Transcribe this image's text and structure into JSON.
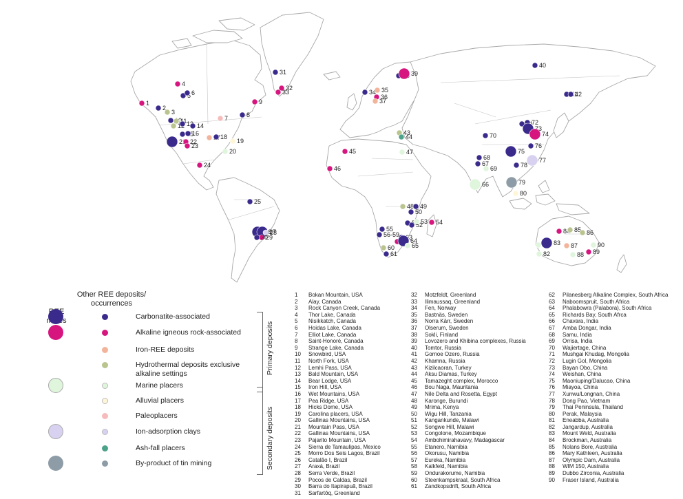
{
  "legend": {
    "mines_header": "REE\nmines",
    "other_header": "Other REE deposits/\noccurrences",
    "primary_label": "Primary deposits",
    "secondary_label": "Secondary deposits",
    "categories": [
      {
        "key": "carb",
        "label": "Carbonatite-associated",
        "color": "#3a2a8c",
        "mine": true,
        "other": true
      },
      {
        "key": "alk",
        "label": "Alkaline igneous rock-associated",
        "color": "#d6157f",
        "mine": true,
        "other": true
      },
      {
        "key": "iron",
        "label": "Iron-REE deposits",
        "color": "#f2b49a",
        "mine": false,
        "other": true
      },
      {
        "key": "hydro",
        "label": "Hydrothermal deposits exclusive alkaline settings",
        "color": "#b9c48f",
        "mine": false,
        "other": true
      },
      {
        "key": "marine",
        "label": "Marine placers",
        "color": "#dff5dc",
        "mine": true,
        "other": true
      },
      {
        "key": "alluvial",
        "label": "Alluvial placers",
        "color": "#fff6d8",
        "mine": false,
        "other": true
      },
      {
        "key": "paleo",
        "label": "Paleoplacers",
        "color": "#f6bcbc",
        "mine": false,
        "other": true
      },
      {
        "key": "ion",
        "label": "Ion-adsorption clays",
        "color": "#d8d2f0",
        "mine": true,
        "other": true
      },
      {
        "key": "ash",
        "label": "Ash-fall placers",
        "color": "#4da28a",
        "mine": false,
        "other": true
      },
      {
        "key": "tin",
        "label": "By-product of tin mining",
        "color": "#8d9ca6",
        "mine": true,
        "other": true
      }
    ]
  },
  "deposits": [
    "Bokan Mountain, USA",
    "Alay, Canada",
    "Rock Canyon Creek, Canada",
    "Thor Lake, Canada",
    "Nisikkatch, Canada",
    "Hoidas Lake, Canada",
    "Elliot Lake, Canada",
    "Saint-Honoré, Canada",
    "Strange Lake, Canada",
    "Snowbird, USA",
    "North Fork, USA",
    "Lemhi Pass, USA",
    "Bald Mountain, USA",
    "Bear Lodge, USA",
    "Iron Hill, USA",
    "Wet Mountains, USA",
    "Pea Ridge, USA",
    "Hicks Dome, USA",
    "Carolina placers, USA",
    "Gallinas Mountains, USA",
    "Mountain Pass, USA",
    "Gallinas Mountains, USA",
    "Pajarito Mountain, USA",
    "Sierra de Tamaulipas, Mexico",
    "Morro Dos Seis Lagos, Brazil",
    "Catalão I, Brazil",
    "Araxá, Brazil",
    "Serra Verde, Brazil",
    "Pocos de Caldas, Brazil",
    "Barra do Itapirapuã, Brazil",
    "Sarfartôq, Greenland",
    "Motzfeldt, Greenland",
    "Ilimaussaq, Greenland",
    "Fen, Norway",
    "Bastnäs, Sweden",
    "Norra Kärr, Sweden",
    "Olserum, Sweden",
    "Sokli, Finland",
    "Lovozero and Khibina complexes, Russia",
    "Tomtor, Russia",
    "Gornoe Ozero, Russia",
    "Khamna, Russia",
    "Kizilcaoran, Turkey",
    "Aksu Diamas, Turkey",
    "Tamazeght complex, Morocco",
    "Bou Naga, Mauritania",
    "Nile Delta and Rosetta, Egypt",
    "Karonge, Burundi",
    "Mrima, Kenya",
    "Wigu Hill, Tanzania",
    "Kangankunde, Malawi",
    "Songwe Hill, Malawi",
    "Congolone, Mozambique",
    "Ambohimirahavavy, Madagascar",
    "Etanero, Namibia",
    "Okorusu, Namibia",
    "Eureka, Namibia",
    "Kalkfeld, Namibia",
    "Ondurakorume, Namibia",
    "Steenkampskraal, South Africa",
    "Zandkopsdrift, South Africa",
    "Pilanesberg Alkaline Complex, South Africa",
    "Naboomspruit, South Africa",
    "Phalabowra (Palabora), South Africa",
    "Richards Bay, South Afrca",
    "Chavara, India",
    "Amba Dongar, India",
    "Samu, India",
    "Orrisa, India",
    "Wajiertage, China",
    "Mushgai Khudag, Mongolia",
    "Lugin Gol, Mongolia",
    "Bayan Obo, China",
    "Weishan, China",
    "Maoniuping/Dalucao, China",
    "Miayoa, China",
    "Xunwu/Longnan, China",
    "Dong Pao, Vietnam",
    "Thai Peninsula, Thailand",
    "Perak, Malaysia",
    "Eneabba, Australia",
    "Jangardup, Australia",
    "Mount Weld, Australia",
    "Brockman, Australia",
    "Nolans Bore, Australia",
    "Mary Kathleen, Australia",
    "Olympic Dam, Australia",
    "WIM 150, Australia",
    "Dubbo Zirconia, Australia",
    "Fraser Island, Australia"
  ],
  "markers": [
    {
      "n": "1",
      "label": "1",
      "cat": "alk",
      "mine": false,
      "lx": 206,
      "ly": 150
    },
    {
      "n": "2",
      "label": "2",
      "cat": "carb",
      "mine": false,
      "lx": 230,
      "ly": 157
    },
    {
      "n": "3",
      "label": "3",
      "cat": "hydro",
      "mine": false,
      "lx": 243,
      "ly": 163
    },
    {
      "n": "4",
      "label": "4",
      "cat": "alk",
      "mine": false,
      "lx": 258,
      "ly": 122
    },
    {
      "n": "5",
      "label": "5",
      "cat": "carb",
      "mine": false,
      "lx": 266,
      "ly": 139
    },
    {
      "n": "6",
      "label": "6",
      "cat": "carb",
      "mine": false,
      "lx": 272,
      "ly": 135
    },
    {
      "n": "7",
      "label": "7",
      "cat": "paleo",
      "mine": false,
      "lx": 320,
      "ly": 172
    },
    {
      "n": "8",
      "label": "8",
      "cat": "carb",
      "mine": false,
      "lx": 352,
      "ly": 167
    },
    {
      "n": "9",
      "label": "9",
      "cat": "alk",
      "mine": false,
      "lx": 370,
      "ly": 148
    },
    {
      "n": "10",
      "label": "10",
      "cat": "carb",
      "mine": false,
      "lx": 248,
      "ly": 175
    },
    {
      "n": "11",
      "label": "11",
      "cat": "hydro",
      "mine": false,
      "lx": 256,
      "ly": 176
    },
    {
      "n": "12",
      "label": "12",
      "cat": "hydro",
      "mine": false,
      "lx": 252,
      "ly": 183
    },
    {
      "n": "13",
      "label": "13",
      "cat": "carb",
      "mine": false,
      "lx": 265,
      "ly": 180
    },
    {
      "n": "14",
      "label": "14",
      "cat": "carb",
      "mine": false,
      "lx": 280,
      "ly": 183
    },
    {
      "n": "15",
      "label": "15",
      "cat": "carb",
      "mine": false,
      "lx": 265,
      "ly": 195
    },
    {
      "n": "16",
      "label": "16",
      "cat": "carb",
      "mine": false,
      "lx": 273,
      "ly": 194
    },
    {
      "n": "17",
      "label": "17",
      "cat": "iron",
      "mine": false,
      "lx": 304,
      "ly": 200
    },
    {
      "n": "18",
      "label": "18",
      "cat": "carb",
      "mine": false,
      "lx": 314,
      "ly": 199
    },
    {
      "n": "19",
      "label": "19",
      "cat": "alluvial",
      "mine": false,
      "lx": 338,
      "ly": 205
    },
    {
      "n": "20",
      "label": "20",
      "cat": "marine",
      "mine": false,
      "lx": 327,
      "ly": 220
    },
    {
      "n": "21",
      "label": "21",
      "cat": "carb",
      "mine": true,
      "lx": 250,
      "ly": 206
    },
    {
      "n": "22",
      "label": "22",
      "cat": "alk",
      "mine": false,
      "lx": 270,
      "ly": 206
    },
    {
      "n": "23",
      "label": "23",
      "cat": "alk",
      "mine": false,
      "lx": 272,
      "ly": 212
    },
    {
      "n": "24",
      "label": "24",
      "cat": "alk",
      "mine": false,
      "lx": 290,
      "ly": 240
    },
    {
      "n": "25",
      "label": "25",
      "cat": "carb",
      "mine": false,
      "lx": 363,
      "ly": 293
    },
    {
      "n": "26",
      "label": "26",
      "cat": "carb",
      "mine": true,
      "lx": 374,
      "ly": 337
    },
    {
      "n": "27",
      "label": "27",
      "cat": "carb",
      "mine": true,
      "lx": 381,
      "ly": 337
    },
    {
      "n": "28",
      "label": "28",
      "cat": "ion",
      "mine": false,
      "lx": 386,
      "ly": 338
    },
    {
      "n": "29",
      "label": "29",
      "cat": "alk",
      "mine": false,
      "lx": 380,
      "ly": 345
    },
    {
      "n": "30",
      "label": "30",
      "cat": "carb",
      "mine": false,
      "lx": 373,
      "ly": 345
    },
    {
      "n": "31",
      "label": "31",
      "cat": "carb",
      "mine": false,
      "lx": 400,
      "ly": 105
    },
    {
      "n": "32",
      "label": "32",
      "cat": "alk",
      "mine": false,
      "lx": 409,
      "ly": 128
    },
    {
      "n": "33",
      "label": "33",
      "cat": "alk",
      "mine": false,
      "lx": 404,
      "ly": 134
    },
    {
      "n": "34",
      "label": "34",
      "cat": "carb",
      "mine": false,
      "lx": 530,
      "ly": 134
    },
    {
      "n": "35",
      "label": "35",
      "cat": "iron",
      "mine": false,
      "lx": 548,
      "ly": 131
    },
    {
      "n": "36",
      "label": "36",
      "cat": "alk",
      "mine": false,
      "lx": 547,
      "ly": 141
    },
    {
      "n": "37",
      "label": "37",
      "cat": "iron",
      "mine": false,
      "lx": 545,
      "ly": 147
    },
    {
      "n": "38",
      "label": "38",
      "cat": "carb",
      "mine": false,
      "lx": 579,
      "ly": 110
    },
    {
      "n": "39",
      "label": "39",
      "cat": "alk",
      "mine": true,
      "lx": 587,
      "ly": 107
    },
    {
      "n": "40",
      "label": "40",
      "cat": "carb",
      "mine": false,
      "lx": 777,
      "ly": 95
    },
    {
      "n": "41",
      "label": "41",
      "cat": "carb",
      "mine": false,
      "lx": 823,
      "ly": 137
    },
    {
      "n": "42",
      "label": "42",
      "cat": "carb",
      "mine": false,
      "lx": 829,
      "ly": 137
    },
    {
      "n": "43",
      "label": "43",
      "cat": "hydro",
      "mine": false,
      "lx": 580,
      "ly": 193
    },
    {
      "n": "44",
      "label": "44",
      "cat": "ash",
      "mine": false,
      "lx": 583,
      "ly": 199
    },
    {
      "n": "45",
      "label": "45",
      "cat": "alk",
      "mine": false,
      "lx": 501,
      "ly": 220
    },
    {
      "n": "46",
      "label": "46",
      "cat": "alk",
      "mine": false,
      "lx": 479,
      "ly": 245
    },
    {
      "n": "47",
      "label": "47",
      "cat": "marine",
      "mine": false,
      "lx": 584,
      "ly": 221
    },
    {
      "n": "48",
      "label": "48",
      "cat": "hydro",
      "mine": false,
      "lx": 585,
      "ly": 300
    },
    {
      "n": "49",
      "label": "49",
      "cat": "carb",
      "mine": false,
      "lx": 604,
      "ly": 300
    },
    {
      "n": "50",
      "label": "50",
      "cat": "carb",
      "mine": false,
      "lx": 597,
      "ly": 308
    },
    {
      "n": "51",
      "label": "51",
      "cat": "carb",
      "mine": false,
      "lx": 592,
      "ly": 324
    },
    {
      "n": "52",
      "label": "52",
      "cat": "carb",
      "mine": false,
      "lx": 598,
      "ly": 327
    },
    {
      "n": "53",
      "label": "53",
      "cat": "marine",
      "mine": false,
      "lx": 605,
      "ly": 322
    },
    {
      "n": "54",
      "label": "54",
      "cat": "alk",
      "mine": false,
      "lx": 627,
      "ly": 323
    },
    {
      "n": "55",
      "label": "55",
      "cat": "carb",
      "mine": false,
      "lx": 555,
      "ly": 333
    },
    {
      "n": "56",
      "label": "56-59",
      "cat": "carb",
      "mine": false,
      "lx": 551,
      "ly": 341
    },
    {
      "n": "60",
      "label": "60",
      "cat": "hydro",
      "mine": false,
      "lx": 557,
      "ly": 360
    },
    {
      "n": "61",
      "label": "61",
      "cat": "carb",
      "mine": false,
      "lx": 561,
      "ly": 369
    },
    {
      "n": "62",
      "label": "62",
      "cat": "alk",
      "mine": false,
      "lx": 577,
      "ly": 351
    },
    {
      "n": "63",
      "label": "63",
      "cat": "carb",
      "mine": false,
      "lx": 583,
      "ly": 345
    },
    {
      "n": "64",
      "label": "64",
      "cat": "carb",
      "mine": true,
      "lx": 586,
      "ly": 350
    },
    {
      "n": "65",
      "label": "65",
      "cat": "marine",
      "mine": false,
      "lx": 592,
      "ly": 357
    },
    {
      "n": "66",
      "label": "66",
      "cat": "marine",
      "mine": true,
      "lx": 690,
      "ly": 268
    },
    {
      "n": "67",
      "label": "67",
      "cat": "carb",
      "mine": false,
      "lx": 694,
      "ly": 238
    },
    {
      "n": "68",
      "label": "68",
      "cat": "carb",
      "mine": false,
      "lx": 696,
      "ly": 229
    },
    {
      "n": "69",
      "label": "69",
      "cat": "marine",
      "mine": false,
      "lx": 706,
      "ly": 245
    },
    {
      "n": "70",
      "label": "70",
      "cat": "carb",
      "mine": false,
      "lx": 705,
      "ly": 197
    },
    {
      "n": "71",
      "label": "71",
      "cat": "carb",
      "mine": false,
      "lx": 758,
      "ly": 180
    },
    {
      "n": "72",
      "label": "72",
      "cat": "carb",
      "mine": false,
      "lx": 766,
      "ly": 178
    },
    {
      "n": "73",
      "label": "73",
      "cat": "carb",
      "mine": true,
      "lx": 767,
      "ly": 187
    },
    {
      "n": "74",
      "label": "74",
      "cat": "alk",
      "mine": true,
      "lx": 777,
      "ly": 195
    },
    {
      "n": "75",
      "label": "75",
      "cat": "carb",
      "mine": true,
      "lx": 742,
      "ly": 220
    },
    {
      "n": "76",
      "label": "76",
      "cat": "carb",
      "mine": false,
      "lx": 771,
      "ly": 212
    },
    {
      "n": "77",
      "label": "77",
      "cat": "ion",
      "mine": true,
      "lx": 773,
      "ly": 233
    },
    {
      "n": "78",
      "label": "78",
      "cat": "carb",
      "mine": false,
      "lx": 750,
      "ly": 240
    },
    {
      "n": "79",
      "label": "79",
      "cat": "tin",
      "mine": true,
      "lx": 743,
      "ly": 265
    },
    {
      "n": "80",
      "label": "80",
      "cat": "alluvial",
      "mine": false,
      "lx": 749,
      "ly": 281
    },
    {
      "n": "81",
      "label": "81",
      "cat": "marine",
      "mine": false,
      "lx": 782,
      "ly": 356
    },
    {
      "n": "82",
      "label": "82",
      "cat": "marine",
      "mine": false,
      "lx": 783,
      "ly": 369
    },
    {
      "n": "83",
      "label": "83",
      "cat": "carb",
      "mine": true,
      "lx": 794,
      "ly": 353
    },
    {
      "n": "84",
      "label": "84",
      "cat": "alk",
      "mine": false,
      "lx": 812,
      "ly": 336
    },
    {
      "n": "85",
      "label": "85",
      "cat": "hydro",
      "mine": false,
      "lx": 828,
      "ly": 334
    },
    {
      "n": "86",
      "label": "86",
      "cat": "hydro",
      "mine": false,
      "lx": 846,
      "ly": 338
    },
    {
      "n": "87",
      "label": "87",
      "cat": "iron",
      "mine": false,
      "lx": 823,
      "ly": 357
    },
    {
      "n": "88",
      "label": "88",
      "cat": "marine",
      "mine": false,
      "lx": 832,
      "ly": 370
    },
    {
      "n": "89",
      "label": "89",
      "cat": "alk",
      "mine": false,
      "lx": 855,
      "ly": 366
    },
    {
      "n": "90",
      "label": "90",
      "cat": "marine",
      "mine": false,
      "lx": 862,
      "ly": 356
    }
  ]
}
